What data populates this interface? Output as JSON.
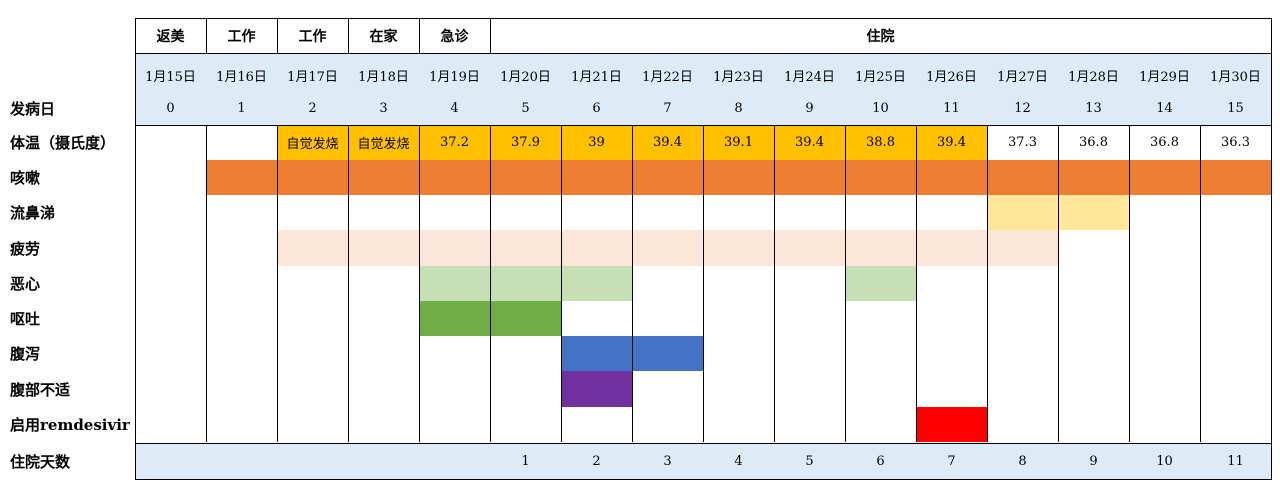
{
  "colors": {
    "fever": "#FFC000",
    "cough": "#ED7D31",
    "runny_nose": "#FFE699",
    "fatigue": "#FBE5D6",
    "nausea": "#C5E0B4",
    "vomit": "#70AD47",
    "diarrhea": "#4472C4",
    "abdominal": "#7030A0",
    "remdesivir": "#FF0000",
    "band": "#DDEBF7"
  },
  "phases": [
    {
      "label": "返美",
      "span": 1
    },
    {
      "label": "工作",
      "span": 1
    },
    {
      "label": "工作",
      "span": 1
    },
    {
      "label": "在家",
      "span": 1
    },
    {
      "label": "急诊",
      "span": 1
    },
    {
      "label": "住院",
      "span": 11
    }
  ],
  "dates": [
    "1月15日",
    "1月16日",
    "1月17日",
    "1月18日",
    "1月19日",
    "1月20日",
    "1月21日",
    "1月22日",
    "1月23日",
    "1月24日",
    "1月25日",
    "1月26日",
    "1月27日",
    "1月28日",
    "1月29日",
    "1月30日"
  ],
  "illness_days": [
    "0",
    "1",
    "2",
    "3",
    "4",
    "5",
    "6",
    "7",
    "8",
    "9",
    "10",
    "11",
    "12",
    "13",
    "14",
    "15"
  ],
  "hospital_days": [
    "",
    "",
    "",
    "",
    "",
    "1",
    "2",
    "3",
    "4",
    "5",
    "6",
    "7",
    "8",
    "9",
    "10",
    "11"
  ],
  "row_labels": {
    "illness_day": "发病日",
    "temperature": "体温（摄氏度）",
    "cough": "咳嗽",
    "runny_nose": "流鼻涕",
    "fatigue": "疲劳",
    "nausea": "恶心",
    "vomit": "呕吐",
    "diarrhea": "腹泻",
    "abdominal": "腹部不适",
    "remdesivir": "启用remdesivir",
    "hospital_days": "住院天数"
  },
  "temperature": {
    "values": [
      "",
      "",
      "自觉发烧",
      "自觉发烧",
      "37.2",
      "37.9",
      "39",
      "39.4",
      "39.1",
      "39.4",
      "38.8",
      "39.4",
      "37.3",
      "36.8",
      "36.8",
      "36.3"
    ],
    "highlight": [
      false,
      false,
      true,
      true,
      true,
      true,
      true,
      true,
      true,
      true,
      true,
      true,
      false,
      false,
      false,
      false
    ]
  },
  "symptoms": {
    "cough": {
      "days": [
        1,
        2,
        3,
        4,
        5,
        6,
        7,
        8,
        9,
        10,
        11,
        12,
        13,
        14,
        15
      ]
    },
    "runny_nose": {
      "days": [
        12,
        13
      ]
    },
    "fatigue": {
      "days": [
        2,
        3,
        4,
        5,
        6,
        7,
        8,
        9,
        10,
        11,
        12
      ]
    },
    "nausea": {
      "days": [
        4,
        5,
        6,
        10
      ]
    },
    "vomit": {
      "days": [
        4,
        5
      ]
    },
    "diarrhea": {
      "days": [
        6,
        7
      ]
    },
    "abdominal": {
      "days": [
        6
      ]
    },
    "remdesivir": {
      "days": [
        11
      ]
    }
  }
}
